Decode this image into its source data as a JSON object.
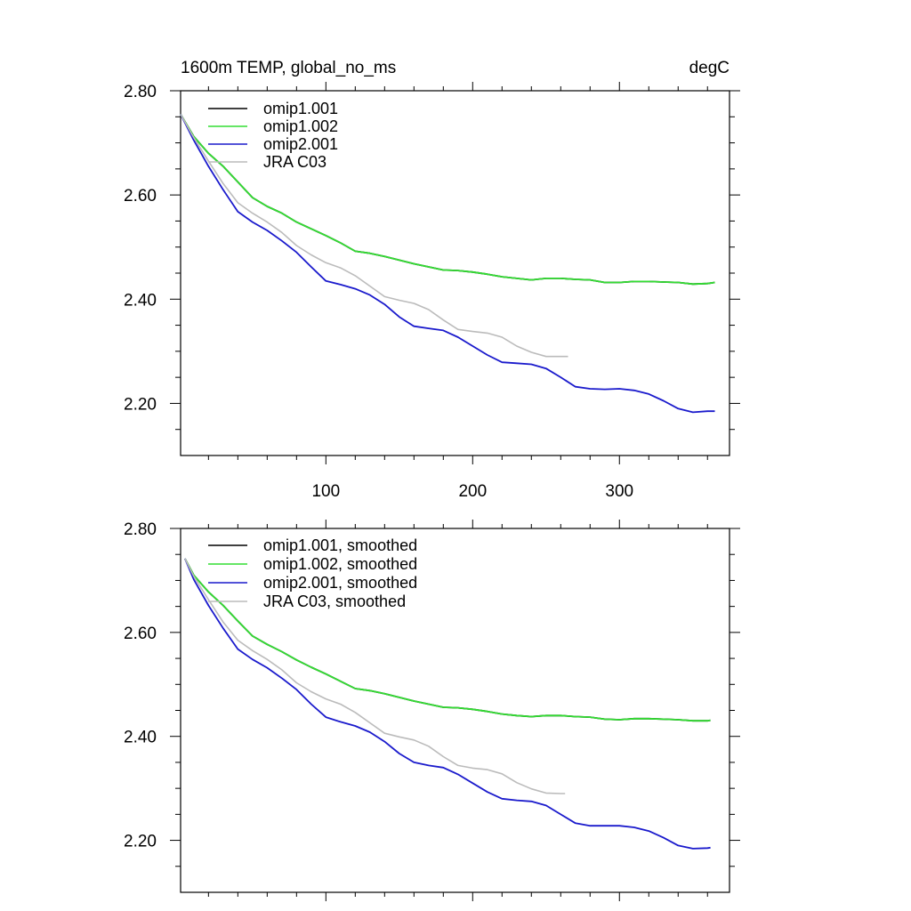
{
  "header": {
    "left_title": "1600m TEMP, global_no_ms",
    "right_title": "degC"
  },
  "chart_data": [
    {
      "type": "line",
      "title": "",
      "xlabel": "",
      "ylabel": "",
      "xlim": [
        1,
        375
      ],
      "ylim": [
        2.1,
        2.8
      ],
      "x_ticks": [
        100,
        200,
        300
      ],
      "x_tick_labels": [
        "100",
        "200",
        "300"
      ],
      "y_ticks": [
        2.2,
        2.4,
        2.6,
        2.8
      ],
      "y_tick_labels": [
        "2.20",
        "2.40",
        "2.60",
        "2.80"
      ],
      "legend_position": "top-left",
      "series": [
        {
          "name": "omip1.001",
          "color": "#000000",
          "x": [
            1,
            10,
            20,
            30,
            40,
            50,
            60,
            70,
            80,
            90,
            100,
            110,
            120,
            130,
            140,
            150,
            160,
            170,
            180,
            190,
            200,
            210,
            220,
            230,
            240,
            250,
            260,
            270,
            280,
            290,
            300,
            310,
            320,
            330,
            340,
            350,
            360,
            365
          ],
          "values": [
            2.755,
            2.712,
            2.68,
            2.655,
            2.625,
            2.595,
            2.578,
            2.565,
            2.548,
            2.535,
            2.522,
            2.508,
            2.492,
            2.488,
            2.482,
            2.475,
            2.468,
            2.462,
            2.456,
            2.455,
            2.452,
            2.448,
            2.443,
            2.44,
            2.437,
            2.44,
            2.44,
            2.438,
            2.437,
            2.432,
            2.432,
            2.434,
            2.434,
            2.433,
            2.432,
            2.429,
            2.43,
            2.432
          ]
        },
        {
          "name": "omip1.002",
          "color": "#33dd33",
          "x": [
            1,
            10,
            20,
            30,
            40,
            50,
            60,
            70,
            80,
            90,
            100,
            110,
            120,
            130,
            140,
            150,
            160,
            170,
            180,
            190,
            200,
            210,
            220,
            230,
            240,
            250,
            260,
            270,
            280,
            290,
            300,
            310,
            320,
            330,
            340,
            350,
            360,
            365
          ],
          "values": [
            2.755,
            2.712,
            2.68,
            2.655,
            2.625,
            2.595,
            2.578,
            2.565,
            2.548,
            2.535,
            2.522,
            2.508,
            2.492,
            2.488,
            2.482,
            2.475,
            2.468,
            2.462,
            2.456,
            2.455,
            2.452,
            2.448,
            2.443,
            2.44,
            2.437,
            2.44,
            2.44,
            2.438,
            2.437,
            2.432,
            2.432,
            2.434,
            2.434,
            2.433,
            2.432,
            2.429,
            2.43,
            2.432
          ]
        },
        {
          "name": "omip2.001",
          "color": "#1a1acc",
          "x": [
            1,
            10,
            20,
            30,
            40,
            50,
            60,
            70,
            80,
            90,
            100,
            110,
            120,
            130,
            140,
            150,
            160,
            170,
            180,
            190,
            200,
            210,
            220,
            230,
            240,
            250,
            260,
            270,
            280,
            290,
            300,
            310,
            320,
            330,
            340,
            350,
            360,
            365
          ],
          "values": [
            2.755,
            2.705,
            2.655,
            2.61,
            2.568,
            2.548,
            2.532,
            2.512,
            2.49,
            2.462,
            2.435,
            2.428,
            2.42,
            2.408,
            2.39,
            2.366,
            2.348,
            2.344,
            2.34,
            2.327,
            2.31,
            2.293,
            2.279,
            2.277,
            2.275,
            2.267,
            2.25,
            2.232,
            2.228,
            2.227,
            2.228,
            2.225,
            2.218,
            2.205,
            2.19,
            2.183,
            2.185,
            2.185
          ]
        },
        {
          "name": "JRA C03",
          "color": "#bbbbbb",
          "x": [
            1,
            10,
            20,
            30,
            40,
            50,
            60,
            70,
            80,
            90,
            100,
            110,
            120,
            130,
            140,
            150,
            160,
            170,
            180,
            190,
            200,
            210,
            220,
            230,
            240,
            250,
            260,
            265
          ],
          "values": [
            2.755,
            2.71,
            2.665,
            2.622,
            2.585,
            2.565,
            2.548,
            2.528,
            2.503,
            2.485,
            2.47,
            2.46,
            2.445,
            2.425,
            2.405,
            2.398,
            2.392,
            2.38,
            2.36,
            2.342,
            2.338,
            2.335,
            2.327,
            2.31,
            2.298,
            2.29,
            2.29,
            2.29
          ]
        }
      ]
    },
    {
      "type": "line",
      "title": "",
      "xlabel": "",
      "ylabel": "",
      "xlim": [
        1,
        375
      ],
      "ylim": [
        2.1,
        2.8
      ],
      "x_ticks": [
        100,
        200,
        300
      ],
      "x_tick_labels": [
        "",
        "",
        ""
      ],
      "y_ticks": [
        2.2,
        2.4,
        2.6,
        2.8
      ],
      "y_tick_labels": [
        "2.20",
        "2.40",
        "2.60",
        "2.80"
      ],
      "legend_position": "top-left",
      "series": [
        {
          "name": "omip1.001, smoothed",
          "color": "#000000",
          "x": [
            4,
            10,
            20,
            30,
            40,
            50,
            60,
            70,
            80,
            90,
            100,
            110,
            120,
            130,
            140,
            150,
            160,
            170,
            180,
            190,
            200,
            210,
            220,
            230,
            240,
            250,
            260,
            270,
            280,
            290,
            300,
            310,
            320,
            330,
            340,
            350,
            360,
            362
          ],
          "values": [
            2.742,
            2.71,
            2.678,
            2.652,
            2.622,
            2.593,
            2.577,
            2.563,
            2.547,
            2.533,
            2.52,
            2.506,
            2.492,
            2.488,
            2.482,
            2.475,
            2.468,
            2.462,
            2.456,
            2.455,
            2.452,
            2.448,
            2.443,
            2.44,
            2.438,
            2.44,
            2.44,
            2.438,
            2.437,
            2.433,
            2.432,
            2.434,
            2.434,
            2.433,
            2.432,
            2.43,
            2.43,
            2.431
          ]
        },
        {
          "name": "omip1.002, smoothed",
          "color": "#33dd33",
          "x": [
            4,
            10,
            20,
            30,
            40,
            50,
            60,
            70,
            80,
            90,
            100,
            110,
            120,
            130,
            140,
            150,
            160,
            170,
            180,
            190,
            200,
            210,
            220,
            230,
            240,
            250,
            260,
            270,
            280,
            290,
            300,
            310,
            320,
            330,
            340,
            350,
            360,
            362
          ],
          "values": [
            2.742,
            2.71,
            2.678,
            2.652,
            2.622,
            2.593,
            2.577,
            2.563,
            2.547,
            2.533,
            2.52,
            2.506,
            2.492,
            2.488,
            2.482,
            2.475,
            2.468,
            2.462,
            2.456,
            2.455,
            2.452,
            2.448,
            2.443,
            2.44,
            2.438,
            2.44,
            2.44,
            2.438,
            2.437,
            2.433,
            2.432,
            2.434,
            2.434,
            2.433,
            2.432,
            2.43,
            2.43,
            2.431
          ]
        },
        {
          "name": "omip2.001, smoothed",
          "color": "#1a1acc",
          "x": [
            4,
            10,
            20,
            30,
            40,
            50,
            60,
            70,
            80,
            90,
            100,
            110,
            120,
            130,
            140,
            150,
            160,
            170,
            180,
            190,
            200,
            210,
            220,
            230,
            240,
            250,
            260,
            270,
            280,
            290,
            300,
            310,
            320,
            330,
            340,
            350,
            360,
            362
          ],
          "values": [
            2.742,
            2.702,
            2.652,
            2.608,
            2.568,
            2.548,
            2.532,
            2.512,
            2.49,
            2.462,
            2.437,
            2.428,
            2.42,
            2.408,
            2.39,
            2.367,
            2.35,
            2.344,
            2.34,
            2.327,
            2.31,
            2.293,
            2.28,
            2.277,
            2.275,
            2.267,
            2.25,
            2.233,
            2.228,
            2.228,
            2.228,
            2.225,
            2.218,
            2.205,
            2.19,
            2.184,
            2.185,
            2.186
          ]
        },
        {
          "name": "JRA C03, smoothed",
          "color": "#bbbbbb",
          "x": [
            4,
            10,
            20,
            30,
            40,
            50,
            60,
            70,
            80,
            90,
            100,
            110,
            120,
            130,
            140,
            150,
            160,
            170,
            180,
            190,
            200,
            210,
            220,
            230,
            240,
            250,
            260,
            263
          ],
          "values": [
            2.742,
            2.708,
            2.663,
            2.62,
            2.585,
            2.565,
            2.548,
            2.528,
            2.503,
            2.486,
            2.472,
            2.462,
            2.446,
            2.426,
            2.406,
            2.399,
            2.393,
            2.381,
            2.361,
            2.344,
            2.339,
            2.336,
            2.328,
            2.311,
            2.299,
            2.291,
            2.29,
            2.29
          ]
        }
      ]
    }
  ]
}
